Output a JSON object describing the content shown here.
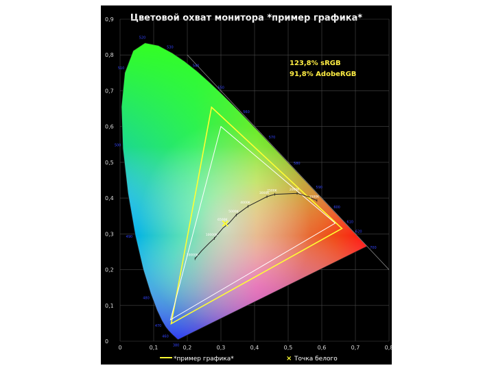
{
  "chart_data": {
    "type": "scatter",
    "title": "Цветовой охват монитора *пример графика*",
    "xlabel": "",
    "ylabel": "",
    "xlim": [
      0,
      0.8
    ],
    "ylim": [
      0,
      0.9
    ],
    "grid": true,
    "x_ticks": [
      "0",
      "0,1",
      "0,2",
      "0,3",
      "0,4",
      "0,5",
      "0,6",
      "0,7",
      "0,8"
    ],
    "y_ticks": [
      "0",
      "0,1",
      "0,2",
      "0,3",
      "0,4",
      "0,5",
      "0,6",
      "0,7",
      "0,8",
      "0,9"
    ],
    "annotations": [
      "123,8% sRGB",
      "91,8% AdobeRGB"
    ],
    "legend_position": "bottom",
    "legend": [
      {
        "label": "*пример графика*",
        "color": "#ffff33",
        "marker": "line"
      },
      {
        "label": "Точка белого",
        "color": "#ffff33",
        "marker": "x"
      }
    ],
    "spectral_locus": [
      [
        0.1741,
        0.005
      ],
      [
        0.1738,
        0.0049
      ],
      [
        0.1736,
        0.0049
      ],
      [
        0.1733,
        0.0048
      ],
      [
        0.173,
        0.0048
      ],
      [
        0.1726,
        0.0048
      ],
      [
        0.1721,
        0.0048
      ],
      [
        0.1714,
        0.0051
      ],
      [
        0.1703,
        0.0058
      ],
      [
        0.1689,
        0.0069
      ],
      [
        0.1669,
        0.0086
      ],
      [
        0.1644,
        0.0109
      ],
      [
        0.1611,
        0.0138
      ],
      [
        0.1566,
        0.0177
      ],
      [
        0.151,
        0.0227
      ],
      [
        0.144,
        0.0297
      ],
      [
        0.1355,
        0.0399
      ],
      [
        0.1241,
        0.0578
      ],
      [
        0.1096,
        0.0868
      ],
      [
        0.0913,
        0.1327
      ],
      [
        0.0687,
        0.2007
      ],
      [
        0.0454,
        0.295
      ],
      [
        0.0235,
        0.4127
      ],
      [
        0.0082,
        0.5384
      ],
      [
        0.0039,
        0.6548
      ],
      [
        0.0139,
        0.7502
      ],
      [
        0.0389,
        0.812
      ],
      [
        0.0743,
        0.8338
      ],
      [
        0.1142,
        0.8262
      ],
      [
        0.1547,
        0.8059
      ],
      [
        0.1929,
        0.7816
      ],
      [
        0.2296,
        0.7543
      ],
      [
        0.2658,
        0.7243
      ],
      [
        0.3016,
        0.6923
      ],
      [
        0.3373,
        0.6589
      ],
      [
        0.3731,
        0.6245
      ],
      [
        0.4087,
        0.5896
      ],
      [
        0.4441,
        0.5547
      ],
      [
        0.4788,
        0.5202
      ],
      [
        0.5125,
        0.4866
      ],
      [
        0.5448,
        0.4544
      ],
      [
        0.5752,
        0.4242
      ],
      [
        0.6029,
        0.3965
      ],
      [
        0.627,
        0.3725
      ],
      [
        0.6482,
        0.3514
      ],
      [
        0.6658,
        0.334
      ],
      [
        0.6801,
        0.3197
      ],
      [
        0.6915,
        0.3083
      ],
      [
        0.7006,
        0.2993
      ],
      [
        0.7079,
        0.292
      ],
      [
        0.714,
        0.2859
      ],
      [
        0.719,
        0.2809
      ],
      [
        0.723,
        0.277
      ],
      [
        0.726,
        0.274
      ],
      [
        0.7283,
        0.2717
      ],
      [
        0.73,
        0.27
      ],
      [
        0.7347,
        0.2653
      ]
    ],
    "wavelength_labels": [
      {
        "label": "380",
        "x": 0.1741,
        "y": 0.005
      },
      {
        "label": "460",
        "x": 0.144,
        "y": 0.0297
      },
      {
        "label": "470",
        "x": 0.1241,
        "y": 0.0578
      },
      {
        "label": "480",
        "x": 0.0913,
        "y": 0.1327
      },
      {
        "label": "490",
        "x": 0.0454,
        "y": 0.295
      },
      {
        "label": "500",
        "x": 0.0082,
        "y": 0.5384
      },
      {
        "label": "510",
        "x": 0.0139,
        "y": 0.7502
      },
      {
        "label": "520",
        "x": 0.0743,
        "y": 0.8338
      },
      {
        "label": "530",
        "x": 0.1547,
        "y": 0.8059
      },
      {
        "label": "540",
        "x": 0.2296,
        "y": 0.7543
      },
      {
        "label": "550",
        "x": 0.3016,
        "y": 0.6923
      },
      {
        "label": "560",
        "x": 0.3731,
        "y": 0.6245
      },
      {
        "label": "570",
        "x": 0.4441,
        "y": 0.5547
      },
      {
        "label": "580",
        "x": 0.5125,
        "y": 0.4866
      },
      {
        "label": "590",
        "x": 0.5752,
        "y": 0.4242
      },
      {
        "label": "600",
        "x": 0.627,
        "y": 0.3725
      },
      {
        "label": "610",
        "x": 0.6658,
        "y": 0.334
      },
      {
        "label": "620",
        "x": 0.6915,
        "y": 0.3083
      },
      {
        "label": "700",
        "x": 0.7347,
        "y": 0.2653
      }
    ],
    "series": [
      {
        "name": "*пример графика*",
        "color": "#ffff33",
        "points": [
          [
            0.66,
            0.315
          ],
          [
            0.272,
            0.654
          ],
          [
            0.152,
            0.049
          ]
        ]
      },
      {
        "name": "sRGB",
        "color": "#ffffff",
        "points": [
          [
            0.64,
            0.33
          ],
          [
            0.3,
            0.6
          ],
          [
            0.15,
            0.06
          ]
        ]
      }
    ],
    "white_point": {
      "x": 0.3127,
      "y": 0.329
    },
    "planckian_locus": {
      "points": [
        [
          0.2229,
          0.2304
        ],
        [
          0.2427,
          0.2527
        ],
        [
          0.2652,
          0.2741
        ],
        [
          0.2803,
          0.2872
        ],
        [
          0.3064,
          0.3166
        ],
        [
          0.3239,
          0.3295
        ],
        [
          0.3456,
          0.3527
        ],
        [
          0.3805,
          0.3768
        ],
        [
          0.4369,
          0.4041
        ],
        [
          0.4599,
          0.4106
        ],
        [
          0.5266,
          0.4133
        ],
        [
          0.5608,
          0.4036
        ],
        [
          0.5855,
          0.3932
        ]
      ],
      "labels": [
        {
          "label": "20000K",
          "x": 0.2229,
          "y": 0.2304
        },
        {
          "label": "10000K",
          "x": 0.2803,
          "y": 0.2872
        },
        {
          "label": "6500K",
          "x": 0.3127,
          "y": 0.329
        },
        {
          "label": "5000K",
          "x": 0.3456,
          "y": 0.3527
        },
        {
          "label": "4000K",
          "x": 0.3805,
          "y": 0.3768
        },
        {
          "label": "3000K",
          "x": 0.4369,
          "y": 0.4041
        },
        {
          "label": "2500K",
          "x": 0.4599,
          "y": 0.4106
        },
        {
          "label": "2000K",
          "x": 0.5266,
          "y": 0.4133
        },
        {
          "label": "1500K",
          "x": 0.5855,
          "y": 0.3932
        }
      ]
    }
  }
}
